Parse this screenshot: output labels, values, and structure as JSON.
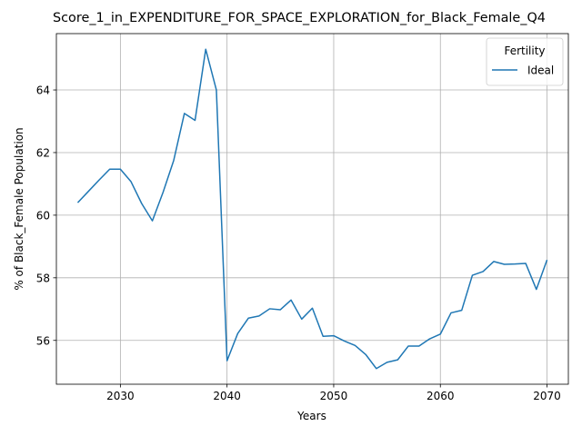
{
  "chart_data": {
    "type": "line",
    "title": "Score_1_in_EXPENDITURE_FOR_SPACE_EXPLORATION_for_Black_Female_Q4",
    "xlabel": "Years",
    "ylabel": "% of Black_Female Population",
    "xlim": [
      2024,
      2072
    ],
    "ylim": [
      54.6,
      65.8
    ],
    "xticks": [
      2030,
      2040,
      2050,
      2060,
      2070
    ],
    "yticks": [
      56,
      58,
      60,
      62,
      64
    ],
    "grid": true,
    "legend": {
      "title": "Fertility",
      "position": "top-right"
    },
    "series": [
      {
        "name": "Ideal",
        "color": "#1f77b4",
        "x": [
          2026,
          2027,
          2028,
          2029,
          2030,
          2031,
          2032,
          2033,
          2034,
          2035,
          2036,
          2037,
          2038,
          2039,
          2040,
          2041,
          2042,
          2043,
          2044,
          2045,
          2046,
          2047,
          2048,
          2049,
          2050,
          2051,
          2052,
          2053,
          2054,
          2055,
          2056,
          2057,
          2058,
          2059,
          2060,
          2061,
          2062,
          2063,
          2064,
          2065,
          2066,
          2067,
          2068,
          2069,
          2070
        ],
        "y": [
          60.4,
          60.76,
          61.12,
          61.47,
          61.47,
          61.07,
          60.37,
          59.82,
          60.73,
          61.75,
          63.25,
          63.03,
          65.3,
          64.0,
          55.35,
          56.22,
          56.71,
          56.78,
          57.01,
          56.98,
          57.29,
          56.68,
          57.03,
          56.13,
          56.15,
          55.98,
          55.84,
          55.55,
          55.1,
          55.3,
          55.38,
          55.82,
          55.82,
          56.05,
          56.2,
          56.88,
          56.96,
          58.08,
          58.2,
          58.52,
          58.43,
          58.44,
          58.46,
          57.63,
          58.57
        ]
      }
    ]
  }
}
